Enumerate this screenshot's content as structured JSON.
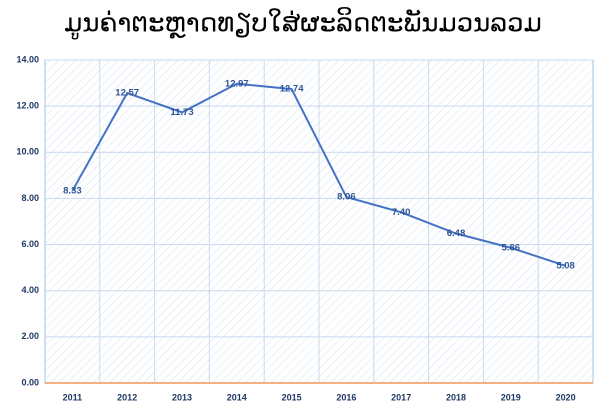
{
  "chart_data": {
    "type": "line",
    "title": "ມູນຄ່າຕະຫຼາດທຽບໃສ່ຜະລິດຕະພັນມວນລວມ",
    "categories": [
      "2011",
      "2012",
      "2013",
      "2014",
      "2015",
      "2016",
      "2017",
      "2018",
      "2019",
      "2020"
    ],
    "values": [
      8.33,
      12.57,
      11.73,
      12.97,
      12.74,
      8.06,
      7.4,
      6.48,
      5.86,
      5.08
    ],
    "value_labels": [
      "8.33",
      "12.57",
      "11.73",
      "12.97",
      "12.74",
      "8.06",
      "7.40",
      "6.48",
      "5.86",
      "5.08"
    ],
    "color": "#4472c4",
    "ylim": [
      0,
      14
    ],
    "yticks": [
      {
        "value": 0,
        "label": "0.00"
      },
      {
        "value": 2,
        "label": "2.00"
      },
      {
        "value": 4,
        "label": "4.00"
      },
      {
        "value": 6,
        "label": "6.00"
      },
      {
        "value": 8,
        "label": "8.00"
      },
      {
        "value": 10,
        "label": "10.00"
      },
      {
        "value": 12,
        "label": "12.00"
      },
      {
        "value": 14,
        "label": "14.00"
      }
    ],
    "grid": true
  }
}
